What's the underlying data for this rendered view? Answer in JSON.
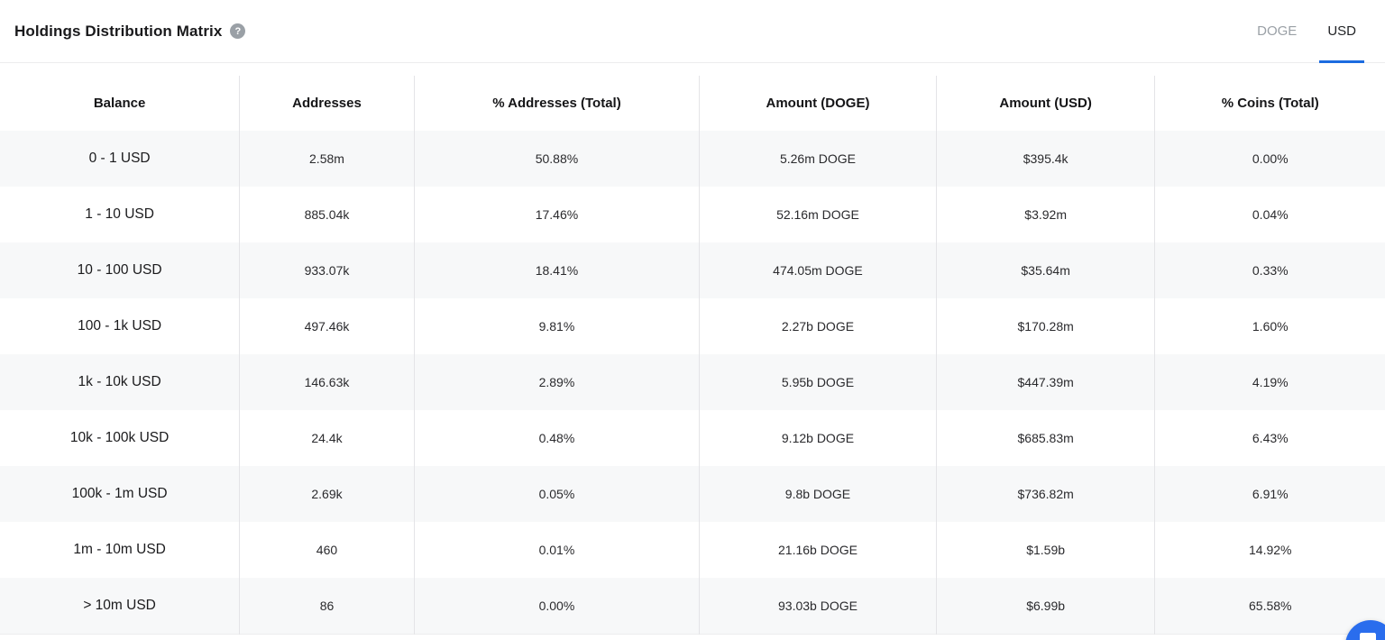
{
  "header": {
    "title": "Holdings Distribution Matrix",
    "help_icon": "question-circle-icon",
    "tabs": [
      {
        "label": "DOGE",
        "active": false
      },
      {
        "label": "USD",
        "active": true
      }
    ]
  },
  "table": {
    "columns": [
      "Balance",
      "Addresses",
      "% Addresses (Total)",
      "Amount (DOGE)",
      "Amount (USD)",
      "% Coins (Total)"
    ],
    "rows": [
      [
        "0 - 1 USD",
        "2.58m",
        "50.88%",
        "5.26m DOGE",
        "$395.4k",
        "0.00%"
      ],
      [
        "1 - 10 USD",
        "885.04k",
        "17.46%",
        "52.16m DOGE",
        "$3.92m",
        "0.04%"
      ],
      [
        "10 - 100 USD",
        "933.07k",
        "18.41%",
        "474.05m DOGE",
        "$35.64m",
        "0.33%"
      ],
      [
        "100 - 1k USD",
        "497.46k",
        "9.81%",
        "2.27b DOGE",
        "$170.28m",
        "1.60%"
      ],
      [
        "1k - 10k USD",
        "146.63k",
        "2.89%",
        "5.95b DOGE",
        "$447.39m",
        "4.19%"
      ],
      [
        "10k - 100k USD",
        "24.4k",
        "0.48%",
        "9.12b DOGE",
        "$685.83m",
        "6.43%"
      ],
      [
        "100k - 1m USD",
        "2.69k",
        "0.05%",
        "9.8b DOGE",
        "$736.82m",
        "6.91%"
      ],
      [
        "1m - 10m USD",
        "460",
        "0.01%",
        "21.16b DOGE",
        "$1.59b",
        "14.92%"
      ],
      [
        "> 10m USD",
        "86",
        "0.00%",
        "93.03b DOGE",
        "$6.99b",
        "65.58%"
      ]
    ]
  },
  "chat_button": {
    "icon": "chat-bubble-icon"
  },
  "colors": {
    "accent": "#1c6be0",
    "row_alt": "#f7f8f9",
    "column_divider": "#e4e4e7",
    "header_divider": "#ececee",
    "inactive_tab": "#9aa0a6",
    "chat_fab": "#2a6ded"
  }
}
